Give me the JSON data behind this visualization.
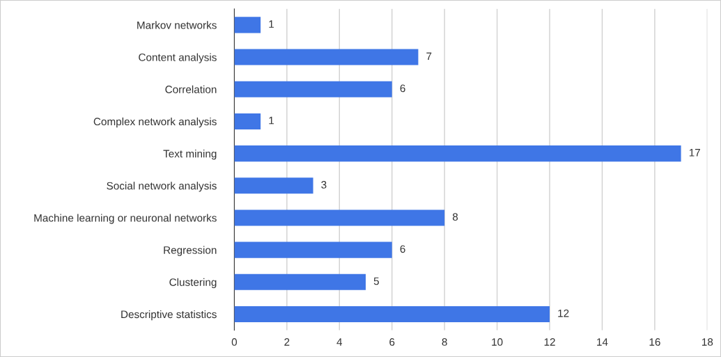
{
  "chart_data": {
    "type": "bar",
    "orientation": "horizontal",
    "categories": [
      "Markov networks",
      "Content analysis",
      "Correlation",
      "Complex network analysis",
      "Text mining",
      "Social network analysis",
      "Machine learning or neuronal networks",
      "Regression",
      "Clustering",
      "Descriptive statistics"
    ],
    "values": [
      1,
      7,
      6,
      1,
      17,
      3,
      8,
      6,
      5,
      12
    ],
    "color": "#3f76e6",
    "xlim": [
      0,
      18
    ],
    "xticks": [
      0,
      2,
      4,
      6,
      8,
      10,
      12,
      14,
      16,
      18
    ],
    "grid": "x",
    "data_labels": true
  }
}
